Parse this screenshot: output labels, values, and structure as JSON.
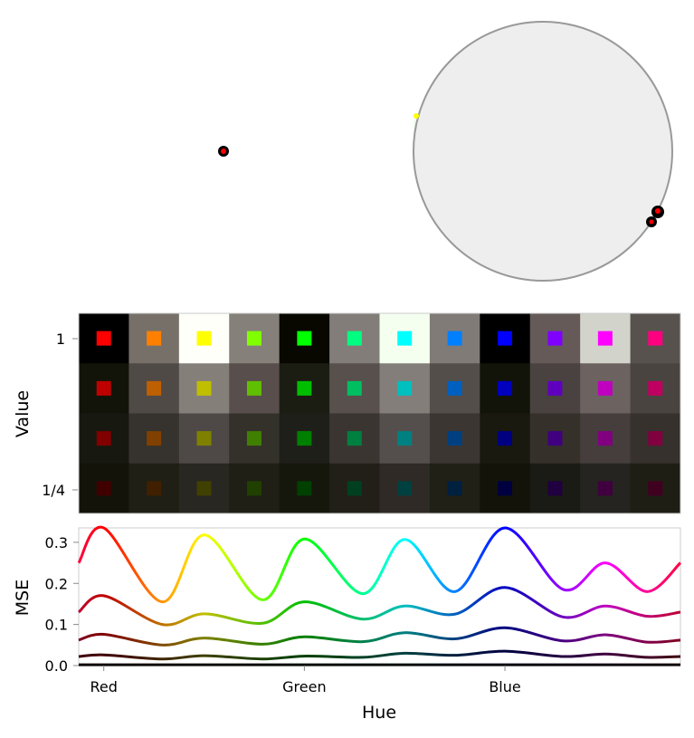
{
  "chart_data": [
    {
      "type": "scatter",
      "panel": "color-space projection",
      "points": [
        {
          "color": "#ff0000",
          "outline": "#000000"
        },
        {
          "color": "#ffff00"
        },
        {
          "color": "#ff0000",
          "outline": "#000000"
        }
      ],
      "circle_fill": "#eeeeee",
      "circle_stroke": "#999999"
    },
    {
      "type": "heatmap",
      "ylabel": "Value",
      "ytick_labels": [
        "1",
        "1/4"
      ],
      "hues_deg": [
        0,
        30,
        60,
        90,
        120,
        150,
        180,
        210,
        240,
        270,
        300,
        330
      ],
      "values": [
        1,
        0.75,
        0.5,
        0.25
      ],
      "backgrounds": [
        [
          "#000000",
          "#767069",
          "#fdfff8",
          "#858079",
          "#080800",
          "#827d78",
          "#f5fff0",
          "#807b77",
          "#000000",
          "#655a58",
          "#d2d4cb",
          "#58524e"
        ],
        [
          "#131409",
          "#4f4a46",
          "#857f7a",
          "#584e4b",
          "#1b1d12",
          "#57504c",
          "#837e79",
          "#534e4a",
          "#131409",
          "#4a4240",
          "#6c6260",
          "#4a4440"
        ],
        [
          "#171810",
          "#36322d",
          "#4e4946",
          "#34312b",
          "#1f1f19",
          "#3a3531",
          "#544f4c",
          "#3b3632",
          "#19190f",
          "#36302b",
          "#453e3c",
          "#36312c"
        ],
        [
          "#13130a",
          "#1f1f15",
          "#282721",
          "#1f1f15",
          "#16170c",
          "#211f18",
          "#2f2a25",
          "#202016",
          "#13130a",
          "#1b1b15",
          "#252420",
          "#1f1e14"
        ]
      ]
    },
    {
      "type": "line",
      "xlabel": "Hue",
      "ylabel": "MSE",
      "xlim": [
        -15,
        345
      ],
      "ylim": [
        0,
        0.335
      ],
      "xticks": [
        {
          "value": 0,
          "label": "Red"
        },
        {
          "value": 120,
          "label": "Green"
        },
        {
          "value": 240,
          "label": "Blue"
        }
      ],
      "yticks": [
        {
          "value": 0,
          "label": "0.0"
        },
        {
          "value": 0.1,
          "label": "0.1"
        },
        {
          "value": 0.2,
          "label": "0.2"
        },
        {
          "value": 0.3,
          "label": "0.3"
        }
      ],
      "x": [
        -15,
        0,
        35,
        60,
        95,
        120,
        155,
        180,
        210,
        240,
        275,
        300,
        325,
        345
      ],
      "series": [
        {
          "level": 1,
          "values": [
            0.25,
            0.335,
            0.155,
            0.318,
            0.16,
            0.308,
            0.175,
            0.307,
            0.18,
            0.335,
            0.185,
            0.25,
            0.18,
            0.25
          ]
        },
        {
          "level": 0.75,
          "values": [
            0.13,
            0.17,
            0.1,
            0.126,
            0.103,
            0.155,
            0.113,
            0.145,
            0.125,
            0.19,
            0.118,
            0.145,
            0.12,
            0.13
          ]
        },
        {
          "level": 0.5,
          "values": [
            0.062,
            0.076,
            0.05,
            0.067,
            0.052,
            0.07,
            0.058,
            0.08,
            0.065,
            0.092,
            0.06,
            0.075,
            0.057,
            0.062
          ]
        },
        {
          "level": 0.25,
          "values": [
            0.022,
            0.026,
            0.016,
            0.024,
            0.016,
            0.023,
            0.02,
            0.03,
            0.025,
            0.035,
            0.022,
            0.028,
            0.02,
            0.022
          ]
        },
        {
          "level": 0.05,
          "values": [
            0.002,
            0.002,
            0.002,
            0.002,
            0.002,
            0.002,
            0.002,
            0.002,
            0.002,
            0.002,
            0.002,
            0.002,
            0.002,
            0.002
          ]
        }
      ]
    }
  ]
}
